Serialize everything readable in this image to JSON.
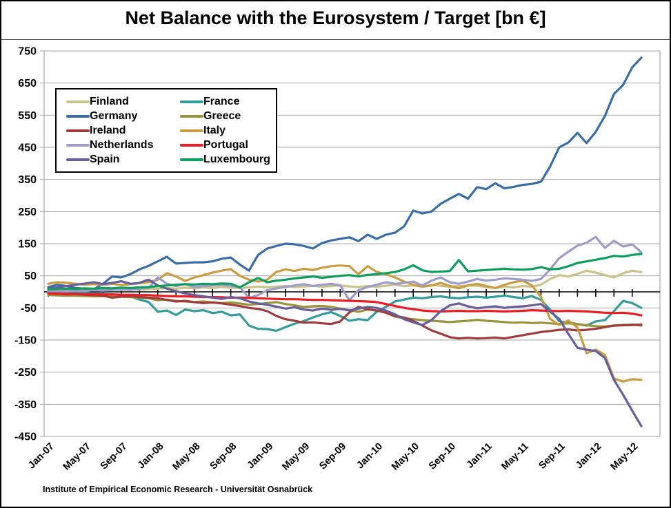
{
  "title": "Net Balance with the Eurosystem / Target [bn €]",
  "footer": {
    "text": "Institute of Empirical Economic Research - Universität Osnabrück"
  },
  "chart_data": {
    "type": "line",
    "title": "Net Balance with the Eurosystem / Target [bn €]",
    "xlabel": "",
    "ylabel": "",
    "ylim": [
      -450,
      750
    ],
    "ytick_step": 100,
    "grid": true,
    "legend_position": "upper-left",
    "x_tick_every": 4,
    "x_minor_tick_every": 2,
    "x_tick_labels": [
      "Jan-07",
      "May-07",
      "Sep-07",
      "Jan-08",
      "May-08",
      "Sep-08",
      "Jan-09",
      "May-09",
      "Sep-09",
      "Jan-10",
      "May-10",
      "Sep-10",
      "Jan-11",
      "May-11",
      "Sep-11",
      "Jan-12",
      "May-12"
    ],
    "axis_colors": {
      "grid": "#A6A6A6",
      "zero_line": "#000000",
      "text": "#000000"
    },
    "x": [
      "Jan-07",
      "Feb-07",
      "Mar-07",
      "Apr-07",
      "May-07",
      "Jun-07",
      "Jul-07",
      "Aug-07",
      "Sep-07",
      "Oct-07",
      "Nov-07",
      "Dec-07",
      "Jan-08",
      "Feb-08",
      "Mar-08",
      "Apr-08",
      "May-08",
      "Jun-08",
      "Jul-08",
      "Aug-08",
      "Sep-08",
      "Oct-08",
      "Nov-08",
      "Dec-08",
      "Jan-09",
      "Feb-09",
      "Mar-09",
      "Apr-09",
      "May-09",
      "Jun-09",
      "Jul-09",
      "Aug-09",
      "Sep-09",
      "Oct-09",
      "Nov-09",
      "Dec-09",
      "Jan-10",
      "Feb-10",
      "Mar-10",
      "Apr-10",
      "May-10",
      "Jun-10",
      "Jul-10",
      "Aug-10",
      "Sep-10",
      "Oct-10",
      "Nov-10",
      "Dec-10",
      "Jan-11",
      "Feb-11",
      "Mar-11",
      "Apr-11",
      "May-11",
      "Jun-11",
      "Jul-11",
      "Aug-11",
      "Sep-11",
      "Oct-11",
      "Nov-11",
      "Dec-11",
      "Jan-12",
      "Feb-12",
      "Mar-12",
      "Apr-12",
      "May-12",
      "Jun-12"
    ],
    "series": [
      {
        "name": "Finland",
        "color": "#C9C38A",
        "values": [
          4,
          5,
          4,
          6,
          5,
          6,
          5,
          7,
          6,
          8,
          7,
          9,
          10,
          12,
          10,
          13,
          11,
          14,
          12,
          15,
          13,
          12,
          14,
          16,
          14,
          16,
          18,
          15,
          17,
          19,
          16,
          18,
          20,
          17,
          15,
          18,
          16,
          19,
          22,
          18,
          20,
          17,
          21,
          19,
          16,
          18,
          20,
          19,
          15,
          12,
          16,
          14,
          18,
          16,
          22,
          40,
          52,
          48,
          56,
          66,
          60,
          52,
          45,
          58,
          66,
          61
        ]
      },
      {
        "name": "France",
        "color": "#349B9B",
        "values": [
          3,
          2,
          0,
          -2,
          -3,
          -5,
          -6,
          -8,
          -10,
          -14,
          -24,
          -32,
          -62,
          -58,
          -72,
          -55,
          -60,
          -57,
          -66,
          -62,
          -73,
          -70,
          -105,
          -115,
          -116,
          -121,
          -110,
          -99,
          -91,
          -80,
          -70,
          -63,
          -75,
          -90,
          -85,
          -88,
          -62,
          -47,
          -30,
          -24,
          -18,
          -20,
          -16,
          -14,
          -18,
          -20,
          -17,
          -15,
          -18,
          -15,
          -12,
          -16,
          -20,
          -13,
          -25,
          -55,
          -92,
          -95,
          -100,
          -105,
          -92,
          -88,
          -60,
          -28,
          -35,
          -50
        ]
      },
      {
        "name": "Germany",
        "color": "#3A6CA6",
        "values": [
          15,
          22,
          18,
          12,
          10,
          8,
          25,
          48,
          45,
          55,
          70,
          81,
          95,
          109,
          88,
          90,
          92,
          92,
          95,
          103,
          107,
          85,
          66,
          115,
          135,
          143,
          150,
          148,
          143,
          135,
          152,
          160,
          165,
          170,
          158,
          178,
          165,
          178,
          184,
          204,
          253,
          244,
          250,
          274,
          290,
          305,
          290,
          326,
          320,
          338,
          322,
          327,
          333,
          336,
          343,
          390,
          450,
          465,
          495,
          463,
          498,
          547,
          616,
          644,
          699,
          729
        ]
      },
      {
        "name": "Greece",
        "color": "#99943C",
        "values": [
          -10,
          -11,
          -12,
          -12,
          -13,
          -14,
          -13,
          -14,
          -15,
          -16,
          -18,
          -20,
          -26,
          -24,
          -28,
          -30,
          -32,
          -30,
          -33,
          -35,
          -33,
          -36,
          -40,
          -38,
          -35,
          -32,
          -38,
          -42,
          -47,
          -45,
          -44,
          -47,
          -52,
          -57,
          -62,
          -55,
          -58,
          -65,
          -77,
          -82,
          -85,
          -88,
          -90,
          -92,
          -94,
          -92,
          -90,
          -87,
          -90,
          -92,
          -94,
          -96,
          -95,
          -97,
          -96,
          -98,
          -100,
          -98,
          -101,
          -104,
          -107,
          -108,
          -105,
          -103,
          -102,
          -105
        ]
      },
      {
        "name": "Ireland",
        "color": "#A03B3C",
        "values": [
          -5,
          -6,
          -8,
          -7,
          -9,
          -10,
          -12,
          -18,
          -15,
          -14,
          -16,
          -18,
          -20,
          -25,
          -30,
          -28,
          -32,
          -35,
          -33,
          -36,
          -40,
          -44,
          -50,
          -53,
          -60,
          -75,
          -85,
          -90,
          -96,
          -95,
          -98,
          -100,
          -92,
          -64,
          -47,
          -54,
          -58,
          -65,
          -75,
          -80,
          -90,
          -105,
          -120,
          -130,
          -141,
          -145,
          -143,
          -145,
          -144,
          -142,
          -145,
          -140,
          -135,
          -130,
          -125,
          -122,
          -118,
          -117,
          -120,
          -118,
          -115,
          -110,
          -105,
          -104,
          -103,
          -102
        ]
      },
      {
        "name": "Italy",
        "color": "#CB9C3F",
        "values": [
          25,
          30,
          28,
          25,
          22,
          24,
          22,
          25,
          21,
          24,
          27,
          30,
          38,
          58,
          48,
          34,
          45,
          52,
          60,
          66,
          71,
          50,
          38,
          32,
          38,
          62,
          70,
          65,
          72,
          68,
          75,
          80,
          82,
          80,
          55,
          80,
          62,
          55,
          45,
          32,
          22,
          16,
          20,
          28,
          18,
          11,
          20,
          25,
          18,
          12,
          22,
          30,
          35,
          20,
          -16,
          -84,
          -103,
          -89,
          -111,
          -191,
          -180,
          -196,
          -270,
          -279,
          -272,
          -274
        ]
      },
      {
        "name": "Netherlands",
        "color": "#9D9BC9",
        "values": [
          2,
          3,
          2,
          4,
          3,
          5,
          4,
          6,
          8,
          6,
          10,
          12,
          45,
          25,
          18,
          24,
          15,
          18,
          20,
          22,
          18,
          15,
          -19,
          -10,
          5,
          11,
          15,
          20,
          24,
          18,
          22,
          25,
          20,
          -26,
          5,
          15,
          22,
          30,
          25,
          28,
          32,
          20,
          35,
          45,
          30,
          25,
          32,
          40,
          35,
          38,
          42,
          40,
          38,
          34,
          40,
          70,
          105,
          125,
          144,
          153,
          171,
          137,
          159,
          141,
          148,
          123
        ]
      },
      {
        "name": "Portugal",
        "color": "#EB1C24",
        "values": [
          -5,
          -5,
          -6,
          -6,
          -7,
          -7,
          -8,
          -8,
          -9,
          -9,
          -10,
          -10,
          -12,
          -13,
          -14,
          -14,
          -15,
          -16,
          -16,
          -17,
          -18,
          -18,
          -19,
          -20,
          -21,
          -22,
          -23,
          -23,
          -24,
          -25,
          -25,
          -26,
          -27,
          -28,
          -29,
          -30,
          -32,
          -38,
          -44,
          -50,
          -54,
          -58,
          -60,
          -61,
          -60,
          -59,
          -60,
          -60,
          -59,
          -60,
          -61,
          -60,
          -59,
          -57,
          -58,
          -59,
          -60,
          -59,
          -60,
          -61,
          -63,
          -65,
          -66,
          -65,
          -68,
          -73
        ]
      },
      {
        "name": "Spain",
        "color": "#675E9E",
        "values": [
          10,
          14,
          18,
          22,
          26,
          30,
          24,
          28,
          33,
          25,
          28,
          38,
          20,
          10,
          2,
          -5,
          -10,
          -14,
          -18,
          -22,
          -16,
          -20,
          -30,
          -36,
          -40,
          -46,
          -52,
          -48,
          -55,
          -58,
          -52,
          -56,
          -53,
          -58,
          -52,
          -47,
          -50,
          -58,
          -70,
          -85,
          -95,
          -103,
          -88,
          -60,
          -42,
          -36,
          -45,
          -51,
          -48,
          -45,
          -50,
          -47,
          -45,
          -42,
          -38,
          -62,
          -84,
          -131,
          -174,
          -180,
          -184,
          -206,
          -274,
          -320,
          -370,
          -418
        ]
      },
      {
        "name": "Luxembourg",
        "color": "#0D9D5C",
        "values": [
          8,
          9,
          10,
          9,
          11,
          10,
          12,
          11,
          13,
          12,
          14,
          15,
          18,
          20,
          22,
          24,
          23,
          25,
          24,
          26,
          25,
          14,
          30,
          43,
          30,
          35,
          38,
          42,
          45,
          48,
          44,
          47,
          50,
          52,
          48,
          53,
          55,
          58,
          62,
          70,
          83,
          67,
          62,
          63,
          65,
          99,
          64,
          66,
          68,
          70,
          72,
          70,
          69,
          71,
          77,
          70,
          72,
          80,
          90,
          95,
          100,
          105,
          112,
          110,
          115,
          118
        ]
      }
    ]
  }
}
